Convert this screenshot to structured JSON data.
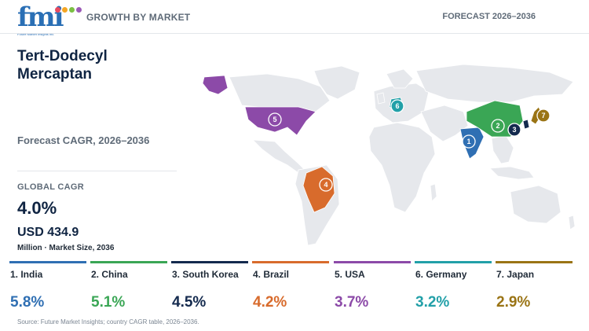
{
  "header": {
    "logo_text": "fmi",
    "logo_tagline": "Future Market Insights Inc.",
    "left_label": "GROWTH BY MARKET",
    "right_label": "FORECAST 2026–2036"
  },
  "panel": {
    "title": "Tert-Dodecyl Mercaptan",
    "subtitle": "Forecast CAGR, 2026–2036",
    "global_cagr_label": "GLOBAL CAGR",
    "global_cagr_value": "4.0%",
    "market_size_value": "USD 434.9",
    "market_size_unit": "Million · Market Size, 2036"
  },
  "countries": [
    {
      "rank": "1",
      "label": "1. India",
      "cagr": "5.8%",
      "color": "#2f6fb3"
    },
    {
      "rank": "2",
      "label": "2. China",
      "cagr": "5.1%",
      "color": "#3aa655"
    },
    {
      "rank": "3",
      "label": "3. South Korea",
      "cagr": "4.5%",
      "color": "#142a4e"
    },
    {
      "rank": "4",
      "label": "4. Brazil",
      "cagr": "4.2%",
      "color": "#d86b2c"
    },
    {
      "rank": "5",
      "label": "5. USA",
      "cagr": "3.7%",
      "color": "#8c4aa8"
    },
    {
      "rank": "6",
      "label": "6. Germany",
      "cagr": "3.2%",
      "color": "#22a0a8"
    },
    {
      "rank": "7",
      "label": "7. Japan",
      "cagr": "2.9%",
      "color": "#9a7415"
    }
  ],
  "colors": {
    "land": "#e6e8ec",
    "title": "#0f2442"
  },
  "source": "Source: Future Market Insights; country CAGR table, 2026–2036."
}
